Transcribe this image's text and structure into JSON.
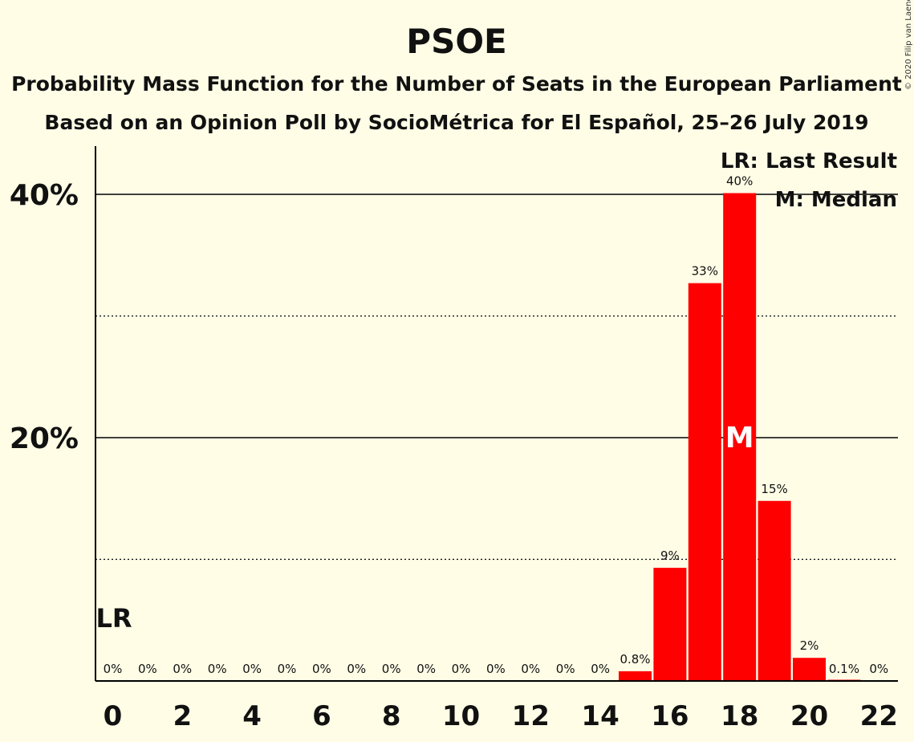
{
  "copyright": "© 2020 Filip van Laenen",
  "chart_data": {
    "type": "bar",
    "title": "PSOE",
    "subtitle": "Probability Mass Function for the Number of Seats in the European Parliament",
    "subtitle2": "Based on an Opinion Poll by SocioMétrica for El Español, 25–26 July 2019",
    "x": [
      0,
      1,
      2,
      3,
      4,
      5,
      6,
      7,
      8,
      9,
      10,
      11,
      12,
      13,
      14,
      15,
      16,
      17,
      18,
      19,
      20,
      21,
      22
    ],
    "values": [
      0,
      0,
      0,
      0,
      0,
      0,
      0,
      0,
      0,
      0,
      0,
      0,
      0,
      0,
      0,
      0.8,
      9.3,
      32.7,
      40.1,
      14.8,
      1.9,
      0.1,
      0
    ],
    "value_labels": [
      "0%",
      "0%",
      "0%",
      "0%",
      "0%",
      "0%",
      "0%",
      "0%",
      "0%",
      "0%",
      "0%",
      "0%",
      "0%",
      "0%",
      "0%",
      "0.8%",
      "9%",
      "33%",
      "40%",
      "15%",
      "2%",
      "0.1%",
      "0%"
    ],
    "x_tick_values": [
      0,
      2,
      4,
      6,
      8,
      10,
      12,
      14,
      16,
      18,
      20,
      22
    ],
    "x_tick_labels": [
      "0",
      "2",
      "4",
      "6",
      "8",
      "10",
      "12",
      "14",
      "16",
      "18",
      "20",
      "22"
    ],
    "y_tick_values": [
      20,
      40
    ],
    "y_tick_labels": [
      "20%",
      "40%"
    ],
    "y_minor_gridlines": [
      10,
      30
    ],
    "ylim": [
      0,
      44
    ],
    "last_result": 0,
    "last_result_marker": "LR",
    "median": 18,
    "median_marker": "M",
    "legend": [
      "LR: Last Result",
      "M: Median"
    ],
    "legend_position": "top-right",
    "bar_color": "#FF0000",
    "background_color": "#FFFDE6"
  }
}
